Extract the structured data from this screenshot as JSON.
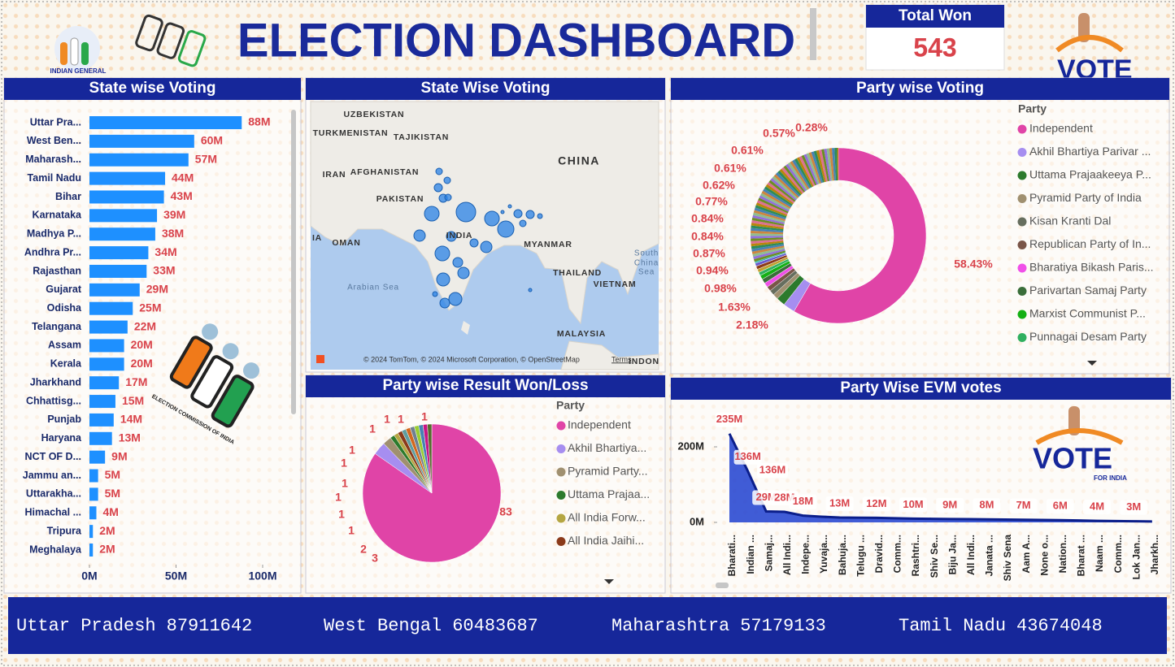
{
  "header": {
    "title": "ELECTION DASHBOARD",
    "logo_text": "INDIAN GENERAL",
    "eci_text": "ELECTION COMMISSION OF INDIA",
    "vote_text": "VOTE",
    "for_india_text": "FOR INDIA"
  },
  "kpi": {
    "label": "Total Won",
    "value": 543
  },
  "chart_data": [
    {
      "type": "bar",
      "orientation": "horizontal",
      "title": "State wise Voting",
      "color": "#1e90ff",
      "categories": [
        "Uttar Pra...",
        "West Ben...",
        "Maharash...",
        "Tamil Nadu",
        "Bihar",
        "Karnataka",
        "Madhya P...",
        "Andhra Pr...",
        "Rajasthan",
        "Gujarat",
        "Odisha",
        "Telangana",
        "Assam",
        "Kerala",
        "Jharkhand",
        "Chhattisg...",
        "Punjab",
        "Haryana",
        "NCT OF D...",
        "Jammu an...",
        "Uttarakha...",
        "Himachal ...",
        "Tripura",
        "Meghalaya"
      ],
      "values": [
        87911642,
        60483687,
        57179133,
        43674048,
        43000000,
        39000000,
        38000000,
        34000000,
        33000000,
        29000000,
        25000000,
        22000000,
        20000000,
        20000000,
        17000000,
        15000000,
        14000000,
        13000000,
        9000000,
        5000000,
        5000000,
        4000000,
        2000000,
        2000000
      ],
      "value_labels": [
        "88M",
        "60M",
        "57M",
        "44M",
        "43M",
        "39M",
        "38M",
        "34M",
        "33M",
        "29M",
        "25M",
        "22M",
        "20M",
        "20M",
        "17M",
        "15M",
        "14M",
        "13M",
        "9M",
        "5M",
        "5M",
        "4M",
        "2M",
        "2M"
      ],
      "xlim": [
        0,
        100000000
      ],
      "xticks": [
        {
          "value": 0,
          "label": "0M"
        },
        {
          "value": 50000000,
          "label": "50M"
        },
        {
          "value": 100000000,
          "label": "100M"
        }
      ]
    },
    {
      "type": "map",
      "title": "State Wise Voting",
      "place_labels": [
        "UZBEKISTAN",
        "TURKMENISTAN",
        "TAJIKISTAN",
        "CHINA",
        "IRAN",
        "AFGHANISTAN",
        "PAKISTAN",
        "IA",
        "OMAN",
        "INDIA",
        "MYANMAR",
        "South",
        "China",
        "Sea",
        "THAILAND",
        "VIETNAM",
        "Arabian Sea",
        "MALAYSIA",
        "INDON"
      ],
      "attribution": "© 2024 TomTom, © 2024 Microsoft Corporation, © OpenStreetMap",
      "terms": "Terms"
    },
    {
      "type": "donut",
      "title": "Party wise Voting",
      "legend_title": "Party",
      "legend": [
        {
          "name": "Independent",
          "color": "#e044a7"
        },
        {
          "name": "Akhil Bhartiya Parivar ...",
          "color": "#a68ef0"
        },
        {
          "name": "Uttama Prajaakeeya P...",
          "color": "#2c7a2c"
        },
        {
          "name": "Pyramid Party of India",
          "color": "#a09070"
        },
        {
          "name": "Kisan Kranti Dal",
          "color": "#666e5e"
        },
        {
          "name": "Republican Party of In...",
          "color": "#7a5548"
        },
        {
          "name": "Bharatiya Bikash Paris...",
          "color": "#f050e8"
        },
        {
          "name": "Parivartan Samaj Party",
          "color": "#3a6e3a"
        },
        {
          "name": "Marxist Communist P...",
          "color": "#14b014"
        },
        {
          "name": "Punnagai Desam Party",
          "color": "#30b060"
        }
      ],
      "values": [
        58.43,
        2.18,
        1.63,
        0.98,
        0.94,
        0.87,
        0.84,
        0.84,
        0.77,
        0.62,
        0.61,
        0.61,
        0.57,
        0.28
      ],
      "value_labels": [
        "58.43%",
        "2.18%",
        "1.63%",
        "0.98%",
        "0.94%",
        "0.87%",
        "0.84%",
        "0.84%",
        "0.77%",
        "0.62%",
        "0.61%",
        "0.61%",
        "0.57%",
        "0.28%"
      ],
      "colors": [
        "#e044a7",
        "#a68ef0",
        "#2c7a2c",
        "#a09070",
        "#666e5e",
        "#7a5548",
        "#f050e8",
        "#3a6e3a",
        "#14b014",
        "#30b060",
        "#c0a030",
        "#8b3a1a",
        "#6a5acd",
        "#20b2aa"
      ]
    },
    {
      "type": "pie",
      "title": "Party wise Result Won/Loss",
      "legend_title": "Party",
      "legend": [
        {
          "name": "Independent",
          "color": "#e044a7"
        },
        {
          "name": "Akhil Bhartiya...",
          "color": "#a68ef0"
        },
        {
          "name": "Pyramid Party...",
          "color": "#a09070"
        },
        {
          "name": "Uttama Prajaa...",
          "color": "#2c7a2c"
        },
        {
          "name": "All India Forw...",
          "color": "#b5a642"
        },
        {
          "name": "All India Jaihi...",
          "color": "#8b3a1a"
        }
      ],
      "values": [
        83,
        3,
        2,
        1,
        1,
        1,
        1,
        1,
        1,
        1,
        1,
        1,
        1
      ],
      "colors": [
        "#e044a7",
        "#a68ef0",
        "#a09070",
        "#2c7a2c",
        "#b5a642",
        "#8b3a1a",
        "#5f9ea0",
        "#d2691e",
        "#708090",
        "#9acd32",
        "#4682b4",
        "#c71585",
        "#556b2f"
      ]
    },
    {
      "type": "area",
      "title": "Party Wise EVM votes",
      "color": "#1f3fd0",
      "categories": [
        "Bharati...",
        "Indian ...",
        "Samaj...",
        "All Indi...",
        "Indepe...",
        "Yuvaja...",
        "Bahuja...",
        "Telugu ...",
        "Dravid...",
        "Comm...",
        "Rashtri...",
        "Shiv Se...",
        "Biju Ja...",
        "All Indi...",
        "Janata ...",
        "Shiv Sena",
        "Aam A...",
        "None o...",
        "Nation...",
        "Bharat ...",
        "Naam ...",
        "Comm...",
        "Lok Jan...",
        "Jharkh..."
      ],
      "values": [
        235000000,
        136000000,
        29000000,
        28000000,
        18000000,
        15000000,
        13000000,
        12500000,
        12000000,
        11000000,
        10000000,
        9500000,
        9000000,
        8500000,
        8000000,
        7500000,
        7000000,
        6500000,
        6000000,
        5000000,
        4000000,
        3500000,
        3000000,
        2500000
      ],
      "value_labels": [
        "235M",
        "136M",
        "29M",
        "28M",
        "18M",
        null,
        "13M",
        null,
        "12M",
        null,
        "10M",
        null,
        "9M",
        null,
        "8M",
        null,
        "7M",
        null,
        "6M",
        null,
        "4M",
        null,
        "3M",
        null
      ],
      "annotations": [
        "136M"
      ],
      "ylim": [
        0,
        250000000
      ],
      "yticks": [
        {
          "value": 0,
          "label": "0M"
        },
        {
          "value": 200000000,
          "label": "200M"
        }
      ]
    }
  ],
  "ticker": [
    {
      "state": "Uttar Pradesh",
      "votes": 87911642
    },
    {
      "state": "West Bengal",
      "votes": 60483687
    },
    {
      "state": "Maharashtra",
      "votes": 57179133
    },
    {
      "state": "Tamil Nadu",
      "votes": 43674048
    }
  ]
}
